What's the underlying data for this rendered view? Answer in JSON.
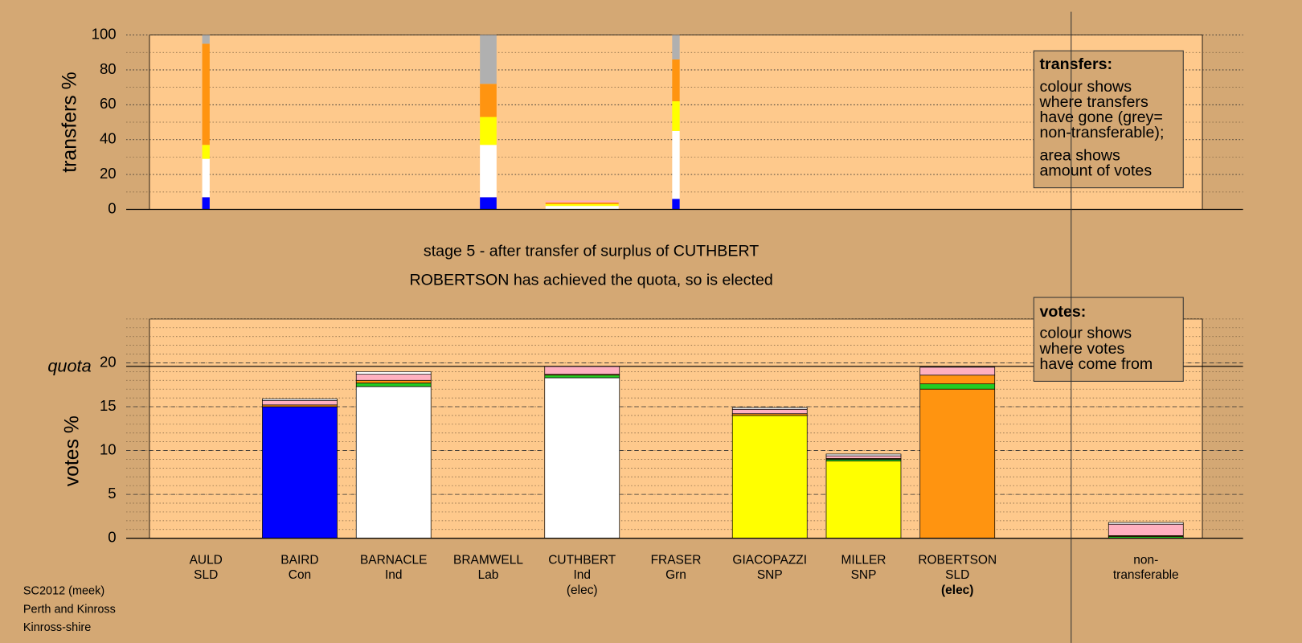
{
  "title": "stage 5 - after transfer of surplus of CUTHBERT",
  "subtitle": "ROBERTSON has achieved the quota, so is elected",
  "footer": [
    "SC2012 (meek)",
    "Perth and Kinross",
    "Kinross-shire"
  ],
  "categories": [
    "AULD",
    "BAIRD",
    "BARNACLE",
    "BRAMWELL",
    "CUTHBERT",
    "FRASER",
    "GIACOPAZZI",
    "MILLER",
    "ROBERTSON",
    "non-"
  ],
  "parties": [
    "SLD",
    "Con",
    "Ind",
    "Lab",
    "Ind",
    "Grn",
    "SNP",
    "SNP",
    "SLD",
    "transferable"
  ],
  "notes": [
    null,
    null,
    null,
    null,
    "(elec)",
    null,
    null,
    null,
    "(elec)",
    null
  ],
  "chart_data": [
    {
      "type": "bar",
      "stacked": true,
      "ylabel": "transfers %",
      "ylim": [
        0,
        100
      ],
      "yticks": [
        0,
        20,
        40,
        60,
        80,
        100
      ],
      "grid": true,
      "legend": {
        "title": "transfers:",
        "paragraphs": [
          [
            "colour shows",
            "where transfers",
            "have gone (grey=",
            "non-transferable);"
          ],
          [
            "area shows",
            "amount of votes"
          ]
        ]
      },
      "series": [
        {
          "color": "#0000ff",
          "values": [
            7,
            0,
            0,
            7,
            0,
            6,
            0,
            0,
            0,
            0
          ]
        },
        {
          "color": "#ffffff",
          "values": [
            22,
            0,
            0,
            30,
            2,
            39,
            0,
            0,
            0,
            0
          ]
        },
        {
          "color": "#ffff00",
          "values": [
            8,
            0,
            0,
            16,
            1,
            17,
            0,
            0,
            0,
            0
          ]
        },
        {
          "color": "#ff9410",
          "values": [
            58,
            0,
            0,
            19,
            1,
            24,
            0,
            0,
            0,
            0
          ]
        },
        {
          "color": "#ffb0c0",
          "values": [
            0,
            0,
            0,
            0,
            1,
            0,
            0,
            0,
            0,
            0
          ]
        },
        {
          "color": "#b0b0b0",
          "values": [
            5,
            0,
            0,
            28,
            0,
            14,
            0,
            0,
            0,
            0
          ]
        }
      ]
    },
    {
      "type": "bar",
      "stacked": true,
      "ylabel": "votes %",
      "ylim": [
        0,
        25
      ],
      "yticks": [
        0,
        5,
        10,
        15,
        20
      ],
      "grid": true,
      "quota": 19.6,
      "quota_label": "quota",
      "legend": {
        "title": "votes:",
        "paragraphs": [
          [
            "colour shows",
            "where votes",
            "have come from"
          ]
        ]
      },
      "series": [
        {
          "color": "#0000ff",
          "values": [
            0,
            15,
            0,
            0,
            0,
            0,
            0,
            0,
            0,
            0
          ]
        },
        {
          "color": "#ffffff",
          "values": [
            0,
            0,
            17.3,
            0,
            18.3,
            0,
            0,
            0,
            0,
            0
          ]
        },
        {
          "color": "#ffff00",
          "values": [
            0,
            0,
            0,
            0,
            0,
            0,
            14,
            8.8,
            0,
            0
          ]
        },
        {
          "color": "#ff9410",
          "values": [
            0,
            0,
            0,
            0,
            0,
            0,
            0,
            0,
            17,
            0
          ]
        },
        {
          "color": "#22cc22",
          "values": [
            0,
            0,
            0.4,
            0,
            0.3,
            0,
            0,
            0.2,
            0.6,
            0.2
          ]
        },
        {
          "color": "#ff9410",
          "values": [
            0,
            0.2,
            0.3,
            0,
            0.1,
            0,
            0.2,
            0.1,
            1,
            0.1
          ]
        },
        {
          "color": "#ffb0c0",
          "values": [
            0,
            0.5,
            0.7,
            0,
            0.9,
            0,
            0.5,
            0.3,
            0.9,
            1.3
          ]
        },
        {
          "color": "#ffffff",
          "values": [
            0,
            0.2,
            0.3,
            0,
            0,
            0,
            0.2,
            0.2,
            0,
            0.2
          ]
        }
      ]
    }
  ]
}
